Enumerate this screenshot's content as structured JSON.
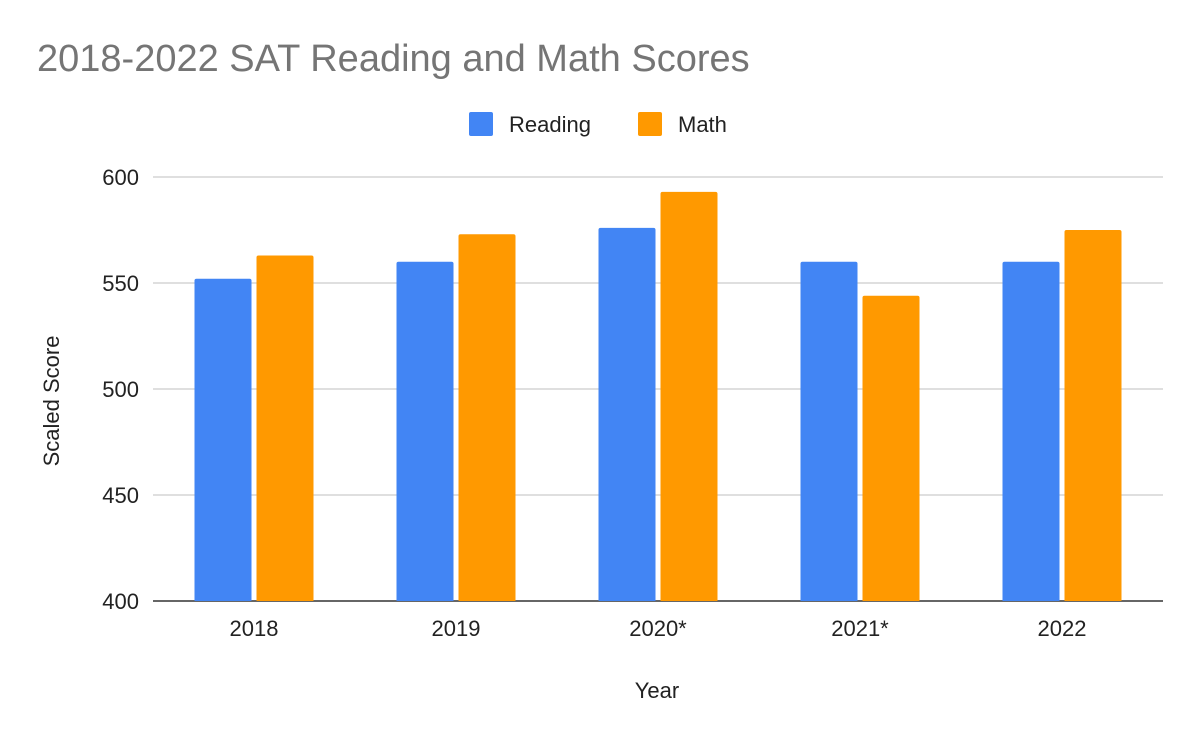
{
  "chart_data": {
    "type": "bar",
    "title": "2018-2022 SAT Reading and Math Scores",
    "xlabel": "Year",
    "ylabel": "Scaled Score",
    "categories": [
      "2018",
      "2019",
      "2020*",
      "2021*",
      "2022"
    ],
    "series": [
      {
        "name": "Reading",
        "color": "#4285F4",
        "values": [
          552,
          560,
          576,
          560,
          560
        ]
      },
      {
        "name": "Math",
        "color": "#FF9900",
        "values": [
          563,
          573,
          593,
          544,
          575
        ]
      }
    ],
    "ylim": [
      400,
      600
    ],
    "yticks": [
      400,
      450,
      500,
      550,
      600
    ],
    "grid": true,
    "legend_position": "top-center"
  }
}
